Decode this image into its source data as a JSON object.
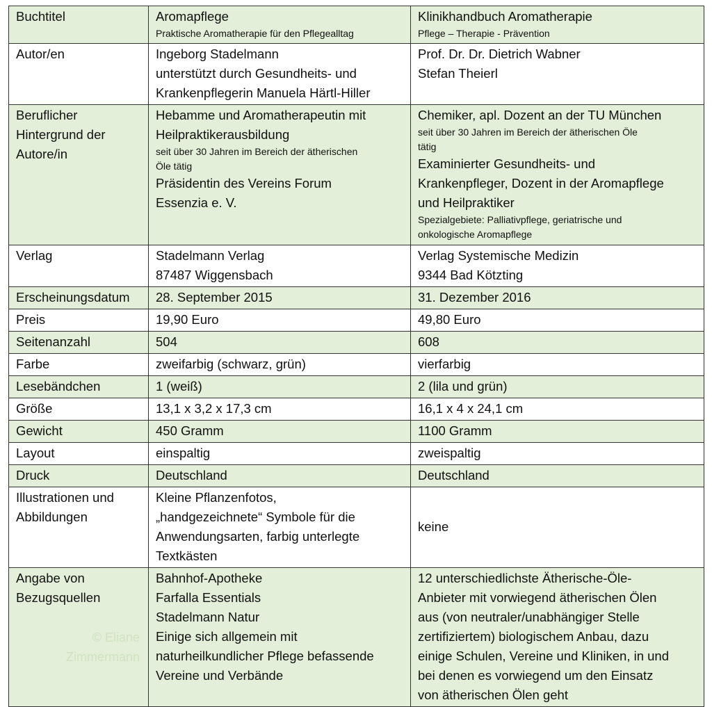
{
  "table": {
    "rows": [
      {
        "cells": [
          [
            "Buchtitel"
          ],
          [
            "Aromapflege",
            {
              "small": "Praktische Aromatherapie für den Pflegealltag"
            }
          ],
          [
            "Klinikhandbuch Aromatherapie",
            {
              "small": "Pflege – Therapie - Prävention"
            }
          ]
        ]
      },
      {
        "cells": [
          [
            "Autor/en"
          ],
          [
            "Ingeborg Stadelmann",
            "unterstützt durch Gesundheits- und",
            "Krankenpflegerin Manuela Härtl-Hiller"
          ],
          [
            "Prof. Dr. Dr. Dietrich Wabner",
            "Stefan Theierl"
          ]
        ]
      },
      {
        "cells": [
          [
            "Beruflicher",
            "Hintergrund der",
            "Autore/in"
          ],
          [
            "Hebamme und Aromatherapeutin mit",
            "Heilpraktikerausbildung",
            {
              "small": "seit über 30 Jahren im Bereich der ätherischen"
            },
            {
              "small": "Öle tätig"
            },
            "Präsidentin des Vereins Forum",
            "Essenzia e. V."
          ],
          [
            "Chemiker, apl. Dozent an der TU München",
            {
              "small": "seit über 30 Jahren im Bereich der ätherischen Öle"
            },
            {
              "small": "tätig"
            },
            "Examinierter Gesundheits- und",
            "Krankenpfleger, Dozent in der Aromapflege",
            "und Heilpraktiker",
            {
              "small": "Spezialgebiete: Palliativpflege, geriatrische und"
            },
            {
              "small": "onkologische Aromapflege"
            }
          ]
        ]
      },
      {
        "cells": [
          [
            "Verlag"
          ],
          [
            "Stadelmann Verlag",
            "87487 Wiggensbach"
          ],
          [
            "Verlag Systemische Medizin",
            "9344 Bad Kötzting"
          ]
        ]
      },
      {
        "cells": [
          [
            "Erscheinungsdatum"
          ],
          [
            "28. September 2015"
          ],
          [
            "31. Dezember 2016"
          ]
        ]
      },
      {
        "cells": [
          [
            "Preis"
          ],
          [
            "19,90 Euro"
          ],
          [
            "49,80 Euro"
          ]
        ]
      },
      {
        "cells": [
          [
            "Seitenanzahl"
          ],
          [
            "504"
          ],
          [
            "608"
          ]
        ]
      },
      {
        "cells": [
          [
            "Farbe"
          ],
          [
            "zweifarbig (schwarz, grün)"
          ],
          [
            "vierfarbig"
          ]
        ]
      },
      {
        "cells": [
          [
            "Lesebändchen"
          ],
          [
            "1 (weiß)"
          ],
          [
            "2 (lila und grün)"
          ]
        ]
      },
      {
        "cells": [
          [
            "Größe"
          ],
          [
            "13,1 x 3,2 x 17,3 cm"
          ],
          [
            "16,1 x 4 x 24,1 cm"
          ]
        ]
      },
      {
        "cells": [
          [
            "Gewicht"
          ],
          [
            "450 Gramm"
          ],
          [
            "1100 Gramm"
          ]
        ]
      },
      {
        "cells": [
          [
            "Layout"
          ],
          [
            "einspaltig"
          ],
          [
            "zweispaltig"
          ]
        ]
      },
      {
        "cells": [
          [
            "Druck"
          ],
          [
            "Deutschland"
          ],
          [
            "Deutschland"
          ]
        ]
      },
      {
        "cells": [
          [
            "Illustrationen und",
            "Abbildungen"
          ],
          [
            "Kleine Pflanzenfotos,",
            "„handgezeichnete“ Symbole für die",
            "Anwendungsarten, farbig unterlegte",
            "Textkästen"
          ],
          [
            "keine"
          ]
        ]
      },
      {
        "cells": [
          [
            "Angabe von",
            "Bezugsquellen"
          ],
          [
            "Bahnhof-Apotheke",
            "Farfalla Essentials",
            "Stadelmann Natur",
            "Einige sich allgemein mit",
            "naturheilkundlicher Pflege befassende",
            "Vereine und Verbände"
          ],
          [
            "12 unterschiedlichste Ätherische-Öle-",
            "Anbieter mit vorwiegend ätherischen Ölen",
            "aus (von neutraler/unabhängiger Stelle",
            "zertifiziertem) biologischem Anbau, dazu",
            "einige Schulen, Vereine und Kliniken, in und",
            "bei denen es vorwiegend um den Einsatz",
            "von ätherischen Ölen geht"
          ]
        ]
      }
    ],
    "watermark": [
      "© Eliane",
      "Zimmermann"
    ]
  }
}
